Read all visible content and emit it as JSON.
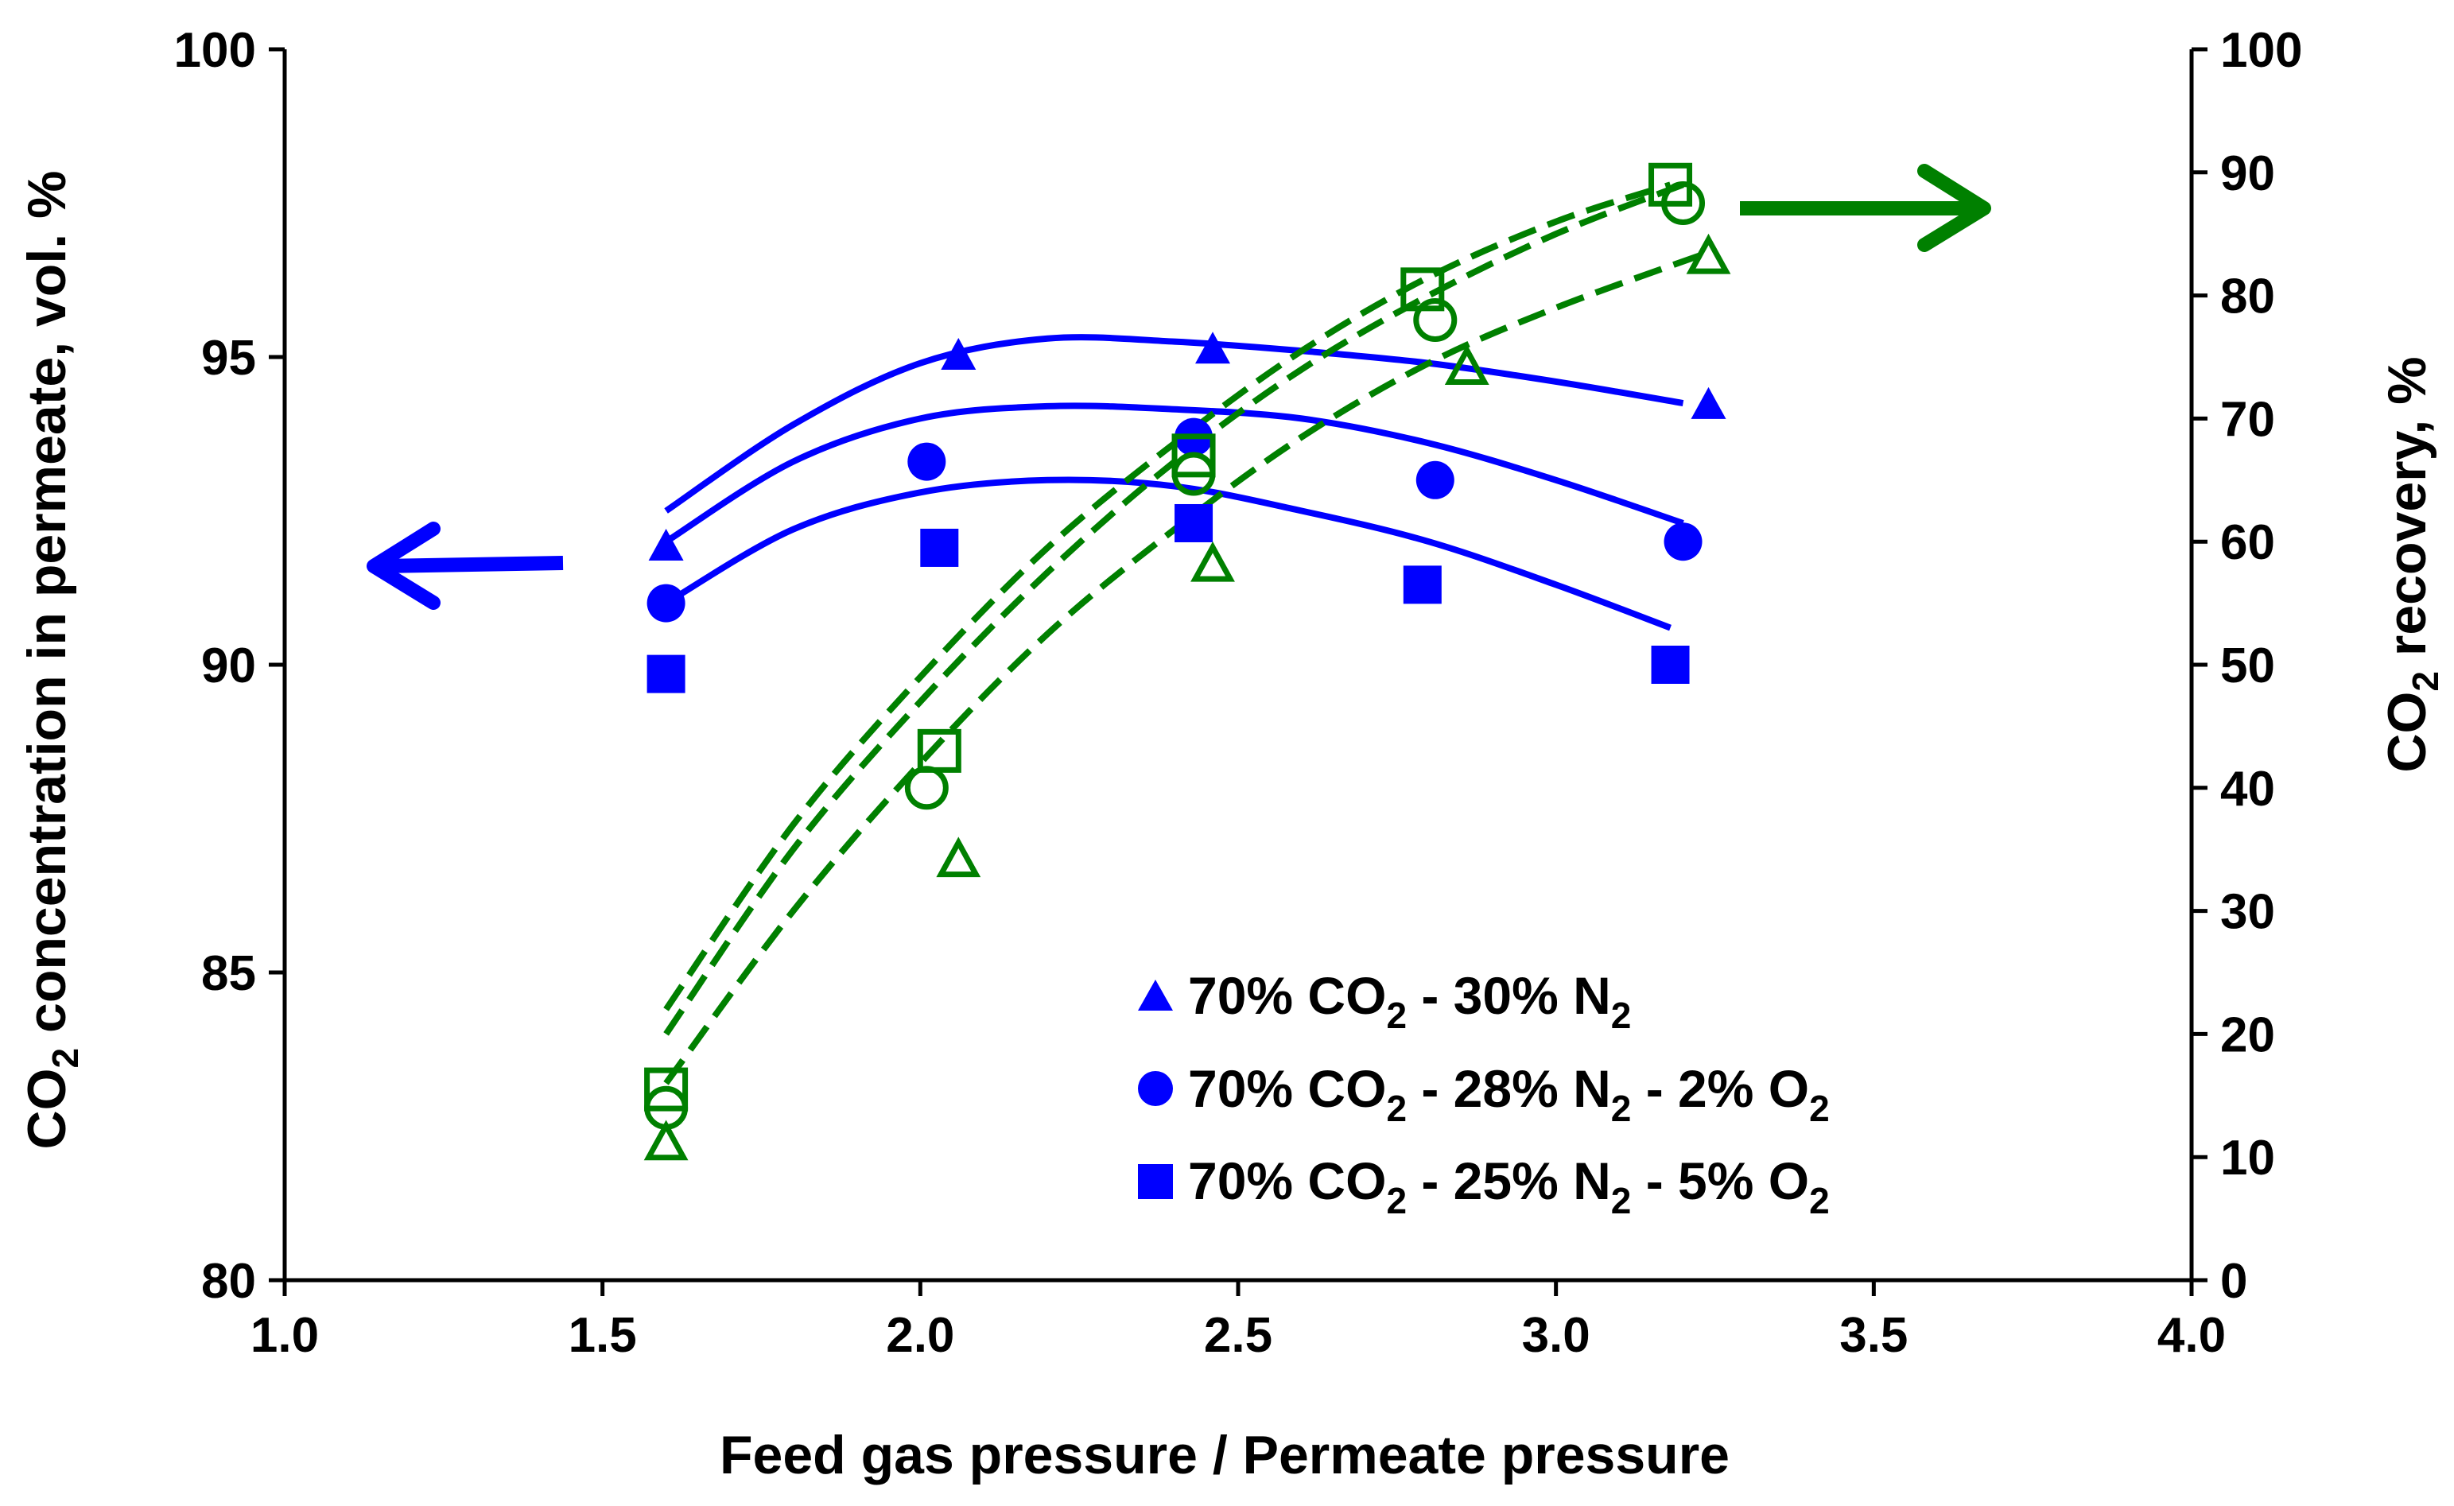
{
  "chart_data": {
    "type": "scatter",
    "x_axis": {
      "label": "Feed gas pressure / Permeate pressure",
      "range": [
        1.0,
        4.0
      ],
      "ticks": [
        1.0,
        1.5,
        2.0,
        2.5,
        3.0,
        3.5,
        4.0
      ],
      "tick_labels": [
        "1.0",
        "1.5",
        "2.0",
        "2.5",
        "3.0",
        "3.5",
        "4.0"
      ]
    },
    "y_left": {
      "label_parts": [
        "CO",
        "2",
        " concentration in permeate, vol. %"
      ],
      "range": [
        80,
        100
      ],
      "ticks": [
        80,
        85,
        90,
        95,
        100
      ],
      "tick_labels": [
        "80",
        "85",
        "90",
        "95",
        "100"
      ]
    },
    "y_right": {
      "label_parts": [
        "CO",
        "2",
        " recovery, %"
      ],
      "range": [
        0,
        100
      ],
      "ticks": [
        0,
        10,
        20,
        30,
        40,
        50,
        60,
        70,
        80,
        90,
        100
      ],
      "tick_labels": [
        "0",
        "10",
        "20",
        "30",
        "40",
        "50",
        "60",
        "70",
        "80",
        "90",
        "100"
      ]
    },
    "colors": {
      "concentration": "#0000ff",
      "recovery": "#008000",
      "axis": "#000000"
    },
    "legend": [
      {
        "marker": "triangle",
        "parts": [
          "70%  CO",
          "2",
          " - 30%  N",
          "2"
        ]
      },
      {
        "marker": "circle",
        "parts": [
          "70%  CO",
          "2",
          " - 28%  N",
          "2",
          " - 2%  O",
          "2"
        ]
      },
      {
        "marker": "square",
        "parts": [
          "70%  CO",
          "2",
          " - 25%  N",
          "2",
          " - 5%  O",
          "2"
        ]
      }
    ],
    "annotations": [
      {
        "type": "arrow",
        "direction": "left",
        "axis": "left",
        "color": "blue"
      },
      {
        "type": "arrow",
        "direction": "right",
        "axis": "right",
        "color": "green"
      }
    ],
    "series": [
      {
        "name": "70% CO2 - 30% N2 concentration",
        "axis": "left",
        "marker": "triangle",
        "filled": true,
        "color": "blue",
        "x": [
          1.6,
          2.06,
          2.46,
          3.24
        ],
        "y": [
          91.9,
          95.0,
          95.1,
          94.2
        ],
        "fit": {
          "style": "solid",
          "x": [
            1.6,
            1.8,
            2.0,
            2.2,
            2.4,
            2.6,
            2.8,
            3.0,
            3.2
          ],
          "y": [
            92.5,
            93.9,
            94.9,
            95.3,
            95.25,
            95.1,
            94.9,
            94.6,
            94.25
          ]
        }
      },
      {
        "name": "70% CO2 - 28% N2 - 2% O2 concentration",
        "axis": "left",
        "marker": "circle",
        "filled": true,
        "color": "blue",
        "x": [
          1.6,
          2.01,
          2.43,
          2.81,
          3.2
        ],
        "y": [
          91.0,
          93.3,
          93.7,
          93.0,
          92.0
        ],
        "fit": {
          "style": "solid",
          "x": [
            1.6,
            1.8,
            2.0,
            2.2,
            2.4,
            2.6,
            2.8,
            3.0,
            3.2
          ],
          "y": [
            92.0,
            93.3,
            94.0,
            94.2,
            94.15,
            94.0,
            93.6,
            93.0,
            92.3
          ]
        }
      },
      {
        "name": "70% CO2 - 25% N2 - 5% O2 concentration",
        "axis": "left",
        "marker": "square",
        "filled": true,
        "color": "blue",
        "x": [
          1.6,
          2.03,
          2.43,
          2.79,
          3.18
        ],
        "y": [
          89.85,
          91.9,
          92.3,
          91.3,
          90.0
        ],
        "fit": {
          "style": "solid",
          "x": [
            1.6,
            1.8,
            2.0,
            2.2,
            2.4,
            2.6,
            2.8,
            3.0,
            3.18
          ],
          "y": [
            91.0,
            92.2,
            92.8,
            93.0,
            92.9,
            92.5,
            92.0,
            91.3,
            90.6
          ]
        }
      },
      {
        "name": "70% CO2 - 30% N2 recovery",
        "axis": "right",
        "marker": "triangle",
        "filled": false,
        "color": "green",
        "x": [
          1.6,
          2.06,
          2.46,
          2.86,
          3.24
        ],
        "y": [
          11.0,
          34.0,
          58.0,
          74.0,
          83.0
        ],
        "fit": {
          "style": "dashed",
          "x": [
            1.6,
            1.8,
            2.0,
            2.2,
            2.4,
            2.6,
            2.8,
            3.0,
            3.24
          ],
          "y": [
            16.0,
            30.0,
            42.0,
            52.5,
            61.0,
            68.5,
            74.5,
            79.0,
            83.5
          ]
        }
      },
      {
        "name": "70% CO2 - 28% N2 - 2% O2 recovery",
        "axis": "right",
        "marker": "circle",
        "filled": false,
        "color": "green",
        "x": [
          1.6,
          2.01,
          2.43,
          2.81,
          3.2
        ],
        "y": [
          14.0,
          40.0,
          65.5,
          78.0,
          87.5
        ],
        "fit": {
          "style": "dashed",
          "x": [
            1.6,
            1.8,
            2.0,
            2.2,
            2.4,
            2.6,
            2.8,
            3.0,
            3.2
          ],
          "y": [
            20.0,
            35.0,
            47.0,
            57.5,
            66.5,
            74.0,
            80.0,
            85.0,
            89.0
          ]
        }
      },
      {
        "name": "70% CO2 - 25% N2 - 5% O2 recovery",
        "axis": "right",
        "marker": "square",
        "filled": false,
        "color": "green",
        "x": [
          1.6,
          2.03,
          2.43,
          2.79,
          3.18
        ],
        "y": [
          15.5,
          43.0,
          67.0,
          80.5,
          89.0
        ],
        "fit": {
          "style": "dashed",
          "x": [
            1.6,
            1.8,
            2.0,
            2.2,
            2.4,
            2.6,
            2.8,
            3.0,
            3.18
          ],
          "y": [
            22.0,
            37.0,
            49.0,
            59.5,
            68.0,
            75.5,
            81.5,
            86.0,
            89.0
          ]
        }
      }
    ]
  }
}
